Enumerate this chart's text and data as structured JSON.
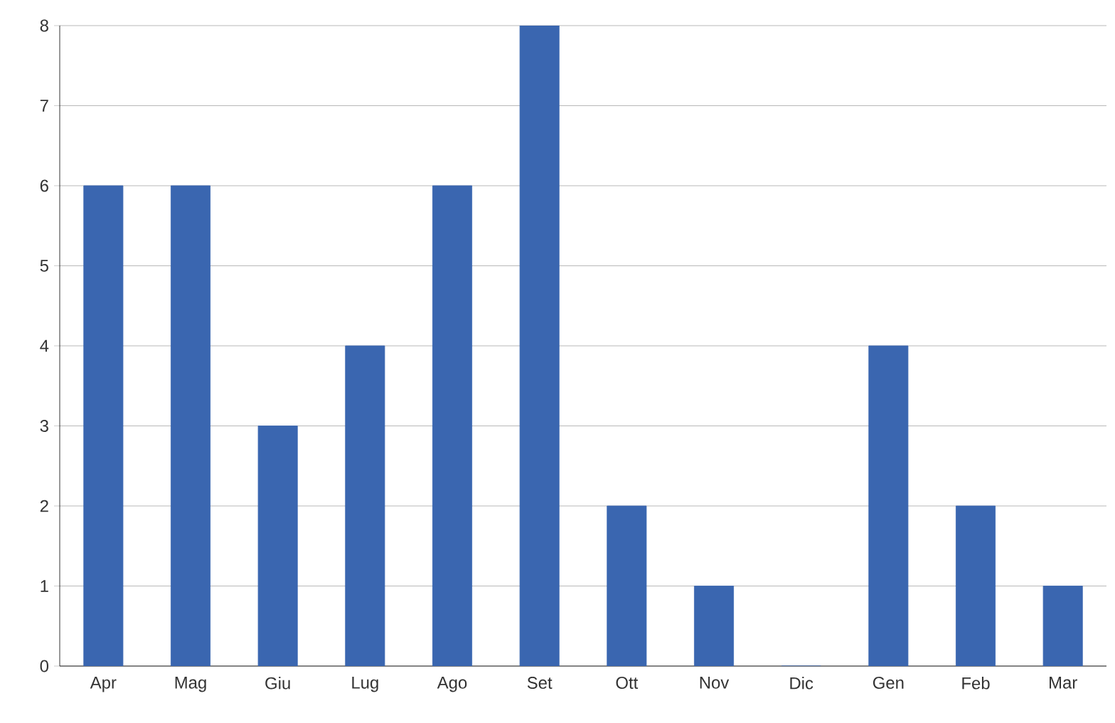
{
  "chart_data": {
    "type": "bar",
    "categories": [
      "Apr",
      "Mag",
      "Giu",
      "Lug",
      "Ago",
      "Set",
      "Ott",
      "Nov",
      "Dic",
      "Gen",
      "Feb",
      "Mar"
    ],
    "values": [
      6,
      6,
      3,
      4,
      6,
      8,
      2,
      1,
      0,
      4,
      2,
      1
    ],
    "color": "#3a66b0",
    "ylim": [
      0,
      8
    ],
    "yticks": [
      0,
      1,
      2,
      3,
      4,
      5,
      6,
      7,
      8
    ],
    "grid": "y"
  }
}
